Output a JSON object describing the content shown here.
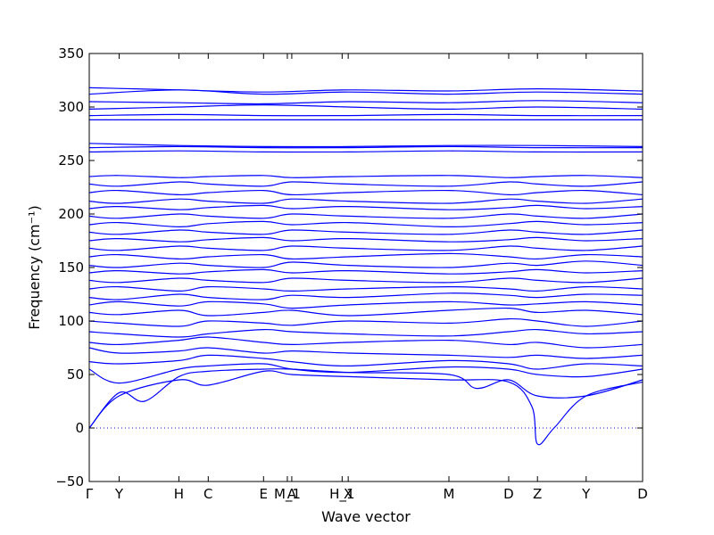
{
  "chart_data": {
    "type": "line",
    "xlabel": "Wave vector",
    "ylabel": "Frequency (cm⁻¹)",
    "ylim": [
      -50,
      350
    ],
    "yticks": [
      -50,
      0,
      50,
      100,
      150,
      200,
      250,
      300,
      350
    ],
    "xlim": [
      0,
      1
    ],
    "xticks": [
      {
        "label": "Γ",
        "x": 0.0
      },
      {
        "label": "Y",
        "x": 0.054
      },
      {
        "label": "H",
        "x": 0.162
      },
      {
        "label": "C",
        "x": 0.215
      },
      {
        "label": "E",
        "x": 0.315
      },
      {
        "label": "M_1",
        "x": 0.358
      },
      {
        "label": "A",
        "x": 0.366
      },
      {
        "label": "H_1",
        "x": 0.457
      },
      {
        "label": "X",
        "x": 0.468
      },
      {
        "label": "M",
        "x": 0.65
      },
      {
        "label": "D",
        "x": 0.758
      },
      {
        "label": "Z",
        "x": 0.81
      },
      {
        "label": "Y",
        "x": 0.898
      },
      {
        "label": "D",
        "x": 1.0
      }
    ],
    "zero_line": {
      "y": 0,
      "style": "dotted",
      "color": "#0000ff"
    },
    "line_color": "#0000ff",
    "series": [
      {
        "x": [
          0,
          0.054,
          0.162,
          0.215,
          0.315,
          0.366,
          0.468,
          0.65,
          0.758,
          0.8,
          0.81,
          0.84,
          0.898,
          1.0
        ],
        "values": [
          0,
          30,
          45,
          40,
          53,
          50,
          48,
          45,
          43,
          20,
          -15,
          0,
          30,
          43
        ]
      },
      {
        "x": [
          0,
          0.054,
          0.1,
          0.162,
          0.215,
          0.315,
          0.366,
          0.468,
          0.65,
          0.7,
          0.758,
          0.81,
          0.898,
          1.0
        ],
        "values": [
          0,
          33,
          25,
          48,
          53,
          55,
          55,
          52,
          50,
          37,
          45,
          30,
          30,
          45
        ]
      },
      {
        "x": [
          0,
          0.054,
          0.162,
          0.215,
          0.315,
          0.366,
          0.468,
          0.65,
          0.758,
          0.81,
          0.898,
          1.0
        ],
        "values": [
          55,
          42,
          55,
          58,
          60,
          55,
          52,
          57,
          55,
          50,
          48,
          55
        ]
      },
      {
        "x": [
          0,
          0.054,
          0.162,
          0.215,
          0.315,
          0.366,
          0.468,
          0.65,
          0.758,
          0.81,
          0.898,
          1.0
        ],
        "values": [
          62,
          60,
          63,
          68,
          65,
          62,
          58,
          63,
          60,
          55,
          60,
          58
        ]
      },
      {
        "x": [
          0,
          0.054,
          0.162,
          0.215,
          0.315,
          0.366,
          0.468,
          0.65,
          0.758,
          0.81,
          0.898,
          1.0
        ],
        "values": [
          75,
          70,
          72,
          75,
          70,
          72,
          70,
          68,
          66,
          68,
          65,
          68
        ]
      },
      {
        "x": [
          0,
          0.054,
          0.162,
          0.215,
          0.315,
          0.366,
          0.468,
          0.65,
          0.758,
          0.81,
          0.898,
          1.0
        ],
        "values": [
          80,
          78,
          82,
          85,
          80,
          78,
          80,
          82,
          78,
          80,
          75,
          78
        ]
      },
      {
        "x": [
          0,
          0.054,
          0.162,
          0.215,
          0.315,
          0.366,
          0.468,
          0.65,
          0.758,
          0.81,
          0.898,
          1.0
        ],
        "values": [
          90,
          88,
          85,
          88,
          92,
          90,
          88,
          86,
          90,
          92,
          88,
          90
        ]
      },
      {
        "x": [
          0,
          0.054,
          0.162,
          0.215,
          0.315,
          0.366,
          0.468,
          0.65,
          0.758,
          0.81,
          0.898,
          1.0
        ],
        "values": [
          100,
          98,
          95,
          100,
          98,
          96,
          100,
          98,
          102,
          100,
          95,
          100
        ]
      },
      {
        "x": [
          0,
          0.054,
          0.162,
          0.215,
          0.315,
          0.366,
          0.468,
          0.65,
          0.758,
          0.81,
          0.898,
          1.0
        ],
        "values": [
          108,
          106,
          110,
          105,
          108,
          110,
          105,
          110,
          112,
          108,
          110,
          106
        ]
      },
      {
        "x": [
          0,
          0.054,
          0.162,
          0.215,
          0.315,
          0.366,
          0.468,
          0.65,
          0.758,
          0.81,
          0.898,
          1.0
        ],
        "values": [
          115,
          118,
          114,
          118,
          116,
          112,
          115,
          118,
          115,
          116,
          118,
          115
        ]
      },
      {
        "x": [
          0,
          0.054,
          0.162,
          0.215,
          0.315,
          0.366,
          0.468,
          0.65,
          0.758,
          0.81,
          0.898,
          1.0
        ],
        "values": [
          122,
          120,
          125,
          122,
          120,
          124,
          122,
          126,
          124,
          122,
          125,
          124
        ]
      },
      {
        "x": [
          0,
          0.054,
          0.162,
          0.215,
          0.315,
          0.366,
          0.468,
          0.65,
          0.758,
          0.81,
          0.898,
          1.0
        ],
        "values": [
          130,
          132,
          128,
          132,
          130,
          128,
          130,
          132,
          130,
          128,
          132,
          130
        ]
      },
      {
        "x": [
          0,
          0.054,
          0.162,
          0.215,
          0.315,
          0.366,
          0.468,
          0.65,
          0.758,
          0.81,
          0.898,
          1.0
        ],
        "values": [
          138,
          136,
          140,
          138,
          136,
          140,
          138,
          136,
          140,
          138,
          136,
          140
        ]
      },
      {
        "x": [
          0,
          0.054,
          0.162,
          0.215,
          0.315,
          0.366,
          0.468,
          0.65,
          0.758,
          0.81,
          0.898,
          1.0
        ],
        "values": [
          145,
          147,
          144,
          146,
          148,
          145,
          147,
          144,
          146,
          148,
          145,
          147
        ]
      },
      {
        "x": [
          0,
          0.054,
          0.162,
          0.215,
          0.315,
          0.366,
          0.468,
          0.65,
          0.758,
          0.81,
          0.898,
          1.0
        ],
        "values": [
          152,
          150,
          154,
          152,
          150,
          155,
          152,
          150,
          154,
          152,
          156,
          152
        ]
      },
      {
        "x": [
          0,
          0.054,
          0.162,
          0.215,
          0.315,
          0.366,
          0.468,
          0.65,
          0.758,
          0.81,
          0.898,
          1.0
        ],
        "values": [
          160,
          162,
          158,
          160,
          162,
          158,
          160,
          163,
          160,
          158,
          162,
          160
        ]
      },
      {
        "x": [
          0,
          0.054,
          0.162,
          0.215,
          0.315,
          0.366,
          0.468,
          0.65,
          0.758,
          0.81,
          0.898,
          1.0
        ],
        "values": [
          168,
          166,
          170,
          168,
          166,
          170,
          168,
          166,
          170,
          168,
          166,
          170
        ]
      },
      {
        "x": [
          0,
          0.054,
          0.162,
          0.215,
          0.315,
          0.366,
          0.468,
          0.65,
          0.758,
          0.81,
          0.898,
          1.0
        ],
        "values": [
          175,
          177,
          174,
          176,
          178,
          175,
          177,
          174,
          176,
          178,
          175,
          177
        ]
      },
      {
        "x": [
          0,
          0.054,
          0.162,
          0.215,
          0.315,
          0.366,
          0.468,
          0.65,
          0.758,
          0.81,
          0.898,
          1.0
        ],
        "values": [
          183,
          181,
          185,
          183,
          181,
          185,
          183,
          181,
          185,
          183,
          181,
          185
        ]
      },
      {
        "x": [
          0,
          0.054,
          0.162,
          0.215,
          0.315,
          0.366,
          0.468,
          0.65,
          0.758,
          0.81,
          0.898,
          1.0
        ],
        "values": [
          190,
          192,
          188,
          191,
          193,
          190,
          192,
          188,
          191,
          193,
          190,
          192
        ]
      },
      {
        "x": [
          0,
          0.054,
          0.162,
          0.215,
          0.315,
          0.366,
          0.468,
          0.65,
          0.758,
          0.81,
          0.898,
          1.0
        ],
        "values": [
          198,
          196,
          200,
          198,
          196,
          200,
          198,
          196,
          200,
          198,
          196,
          200
        ]
      },
      {
        "x": [
          0,
          0.054,
          0.162,
          0.215,
          0.315,
          0.366,
          0.468,
          0.65,
          0.758,
          0.81,
          0.898,
          1.0
        ],
        "values": [
          205,
          207,
          204,
          206,
          208,
          205,
          207,
          204,
          206,
          208,
          205,
          207
        ]
      },
      {
        "x": [
          0,
          0.054,
          0.162,
          0.215,
          0.315,
          0.366,
          0.468,
          0.65,
          0.758,
          0.81,
          0.898,
          1.0
        ],
        "values": [
          212,
          210,
          214,
          212,
          210,
          214,
          212,
          210,
          214,
          212,
          210,
          214
        ]
      },
      {
        "x": [
          0,
          0.054,
          0.162,
          0.215,
          0.315,
          0.366,
          0.468,
          0.65,
          0.758,
          0.81,
          0.898,
          1.0
        ],
        "values": [
          220,
          222,
          218,
          220,
          222,
          218,
          220,
          222,
          218,
          220,
          222,
          218
        ]
      },
      {
        "x": [
          0,
          0.054,
          0.162,
          0.215,
          0.315,
          0.366,
          0.468,
          0.65,
          0.758,
          0.81,
          0.898,
          1.0
        ],
        "values": [
          228,
          226,
          230,
          228,
          226,
          230,
          228,
          226,
          230,
          228,
          226,
          230
        ]
      },
      {
        "x": [
          0,
          0.054,
          0.162,
          0.215,
          0.315,
          0.366,
          0.468,
          0.65,
          0.758,
          0.81,
          0.898,
          1.0
        ],
        "values": [
          235,
          236,
          234,
          235,
          236,
          234,
          235,
          236,
          234,
          235,
          236,
          234
        ]
      },
      {
        "x": [
          0,
          0.162,
          0.315,
          0.468,
          0.65,
          0.81,
          1.0
        ],
        "values": [
          258,
          259,
          258,
          258,
          259,
          258,
          258
        ]
      },
      {
        "x": [
          0,
          0.162,
          0.315,
          0.468,
          0.65,
          0.81,
          1.0
        ],
        "values": [
          262,
          263,
          262,
          262,
          263,
          262,
          262
        ]
      },
      {
        "x": [
          0,
          0.162,
          0.315,
          0.468,
          0.65,
          0.81,
          1.0
        ],
        "values": [
          266,
          264,
          263,
          263,
          264,
          264,
          263
        ]
      },
      {
        "x": [
          0,
          0.162,
          0.315,
          0.468,
          0.65,
          0.81,
          1.0
        ],
        "values": [
          288,
          288,
          288,
          288,
          288,
          288,
          288
        ]
      },
      {
        "x": [
          0,
          0.162,
          0.315,
          0.468,
          0.65,
          0.81,
          1.0
        ],
        "values": [
          292,
          293,
          292,
          292,
          293,
          292,
          292
        ]
      },
      {
        "x": [
          0,
          0.162,
          0.315,
          0.468,
          0.65,
          0.81,
          1.0
        ],
        "values": [
          298,
          300,
          302,
          300,
          298,
          300,
          298
        ]
      },
      {
        "x": [
          0,
          0.162,
          0.315,
          0.468,
          0.65,
          0.81,
          1.0
        ],
        "values": [
          305,
          304,
          303,
          305,
          304,
          306,
          304
        ]
      },
      {
        "x": [
          0,
          0.162,
          0.315,
          0.468,
          0.65,
          0.81,
          1.0
        ],
        "values": [
          312,
          316,
          312,
          314,
          312,
          314,
          312
        ]
      },
      {
        "x": [
          0,
          0.162,
          0.315,
          0.468,
          0.65,
          0.81,
          1.0
        ],
        "values": [
          318,
          316,
          314,
          316,
          315,
          317,
          315
        ]
      }
    ]
  }
}
